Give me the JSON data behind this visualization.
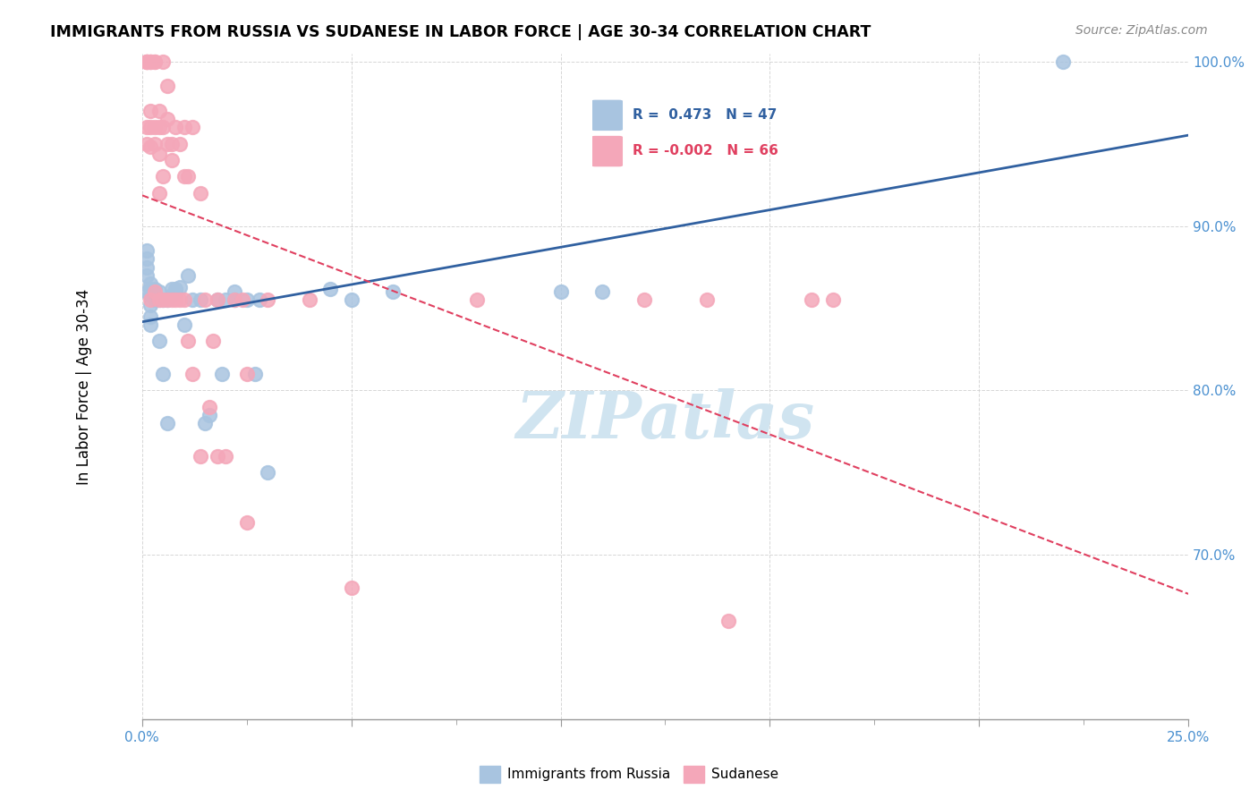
{
  "title": "IMMIGRANTS FROM RUSSIA VS SUDANESE IN LABOR FORCE | AGE 30-34 CORRELATION CHART",
  "source": "Source: ZipAtlas.com",
  "xlabel": "",
  "ylabel": "In Labor Force | Age 30-34",
  "x_min": 0.0,
  "x_max": 0.25,
  "y_min": 0.6,
  "y_max": 1.005,
  "x_ticks": [
    0.0,
    0.025,
    0.05,
    0.075,
    0.1,
    0.125,
    0.15,
    0.175,
    0.2,
    0.225,
    0.25
  ],
  "x_tick_labels": [
    "0.0%",
    "",
    "",
    "",
    "",
    "",
    "",
    "",
    "",
    "",
    "25.0%"
  ],
  "y_ticks": [
    0.6,
    0.65,
    0.7,
    0.75,
    0.8,
    0.85,
    0.9,
    0.95,
    1.0
  ],
  "y_tick_labels": [
    "",
    "",
    "70.0%",
    "",
    "80.0%",
    "",
    "90.0%",
    "",
    "100.0%"
  ],
  "legend_labels": [
    "Immigrants from Russia",
    "Sudanese"
  ],
  "R_russia": 0.473,
  "N_russia": 47,
  "R_sudanese": -0.002,
  "N_sudanese": 66,
  "russia_color": "#a8c4e0",
  "sudanese_color": "#f4a7b9",
  "russia_line_color": "#3060a0",
  "sudanese_line_color": "#e04060",
  "grid_color": "#cccccc",
  "background_color": "#ffffff",
  "watermark_text": "ZIPatlas",
  "watermark_color": "#d0e4f0",
  "russia_x": [
    0.001,
    0.001,
    0.001,
    0.001,
    0.001,
    0.002,
    0.002,
    0.002,
    0.002,
    0.002,
    0.002,
    0.003,
    0.003,
    0.003,
    0.004,
    0.004,
    0.004,
    0.005,
    0.005,
    0.006,
    0.006,
    0.007,
    0.007,
    0.008,
    0.008,
    0.009,
    0.01,
    0.011,
    0.012,
    0.014,
    0.015,
    0.016,
    0.018,
    0.019,
    0.02,
    0.022,
    0.022,
    0.025,
    0.027,
    0.028,
    0.03,
    0.045,
    0.05,
    0.06,
    0.1,
    0.11,
    0.22
  ],
  "russia_y": [
    0.86,
    0.87,
    0.875,
    0.88,
    0.885,
    0.84,
    0.845,
    0.852,
    0.858,
    0.862,
    0.865,
    0.855,
    0.858,
    0.862,
    0.83,
    0.855,
    0.86,
    0.81,
    0.855,
    0.78,
    0.855,
    0.858,
    0.862,
    0.86,
    0.862,
    0.863,
    0.84,
    0.87,
    0.855,
    0.855,
    0.78,
    0.785,
    0.855,
    0.81,
    0.855,
    0.855,
    0.86,
    0.855,
    0.81,
    0.855,
    0.75,
    0.862,
    0.855,
    0.86,
    0.86,
    0.86,
    1.0
  ],
  "sudanese_x": [
    0.001,
    0.001,
    0.001,
    0.001,
    0.001,
    0.001,
    0.002,
    0.002,
    0.002,
    0.002,
    0.002,
    0.002,
    0.002,
    0.003,
    0.003,
    0.003,
    0.003,
    0.003,
    0.004,
    0.004,
    0.004,
    0.004,
    0.004,
    0.005,
    0.005,
    0.005,
    0.005,
    0.006,
    0.006,
    0.006,
    0.006,
    0.007,
    0.007,
    0.007,
    0.008,
    0.008,
    0.009,
    0.009,
    0.01,
    0.01,
    0.01,
    0.011,
    0.011,
    0.012,
    0.012,
    0.014,
    0.014,
    0.015,
    0.016,
    0.017,
    0.018,
    0.018,
    0.02,
    0.022,
    0.024,
    0.025,
    0.025,
    0.03,
    0.04,
    0.05,
    0.08,
    0.12,
    0.135,
    0.14,
    0.16,
    0.165
  ],
  "sudanese_y": [
    1.0,
    1.0,
    1.0,
    1.0,
    0.96,
    0.95,
    1.0,
    1.0,
    1.0,
    0.97,
    0.96,
    0.948,
    0.855,
    1.0,
    1.0,
    0.96,
    0.95,
    0.86,
    0.97,
    0.96,
    0.944,
    0.92,
    0.855,
    1.0,
    0.96,
    0.93,
    0.855,
    0.985,
    0.965,
    0.95,
    0.855,
    0.95,
    0.94,
    0.855,
    0.96,
    0.855,
    0.95,
    0.855,
    0.96,
    0.93,
    0.855,
    0.93,
    0.83,
    0.96,
    0.81,
    0.92,
    0.76,
    0.855,
    0.79,
    0.83,
    0.855,
    0.76,
    0.76,
    0.855,
    0.855,
    0.81,
    0.72,
    0.855,
    0.855,
    0.68,
    0.855,
    0.855,
    0.855,
    0.66,
    0.855,
    0.855
  ]
}
